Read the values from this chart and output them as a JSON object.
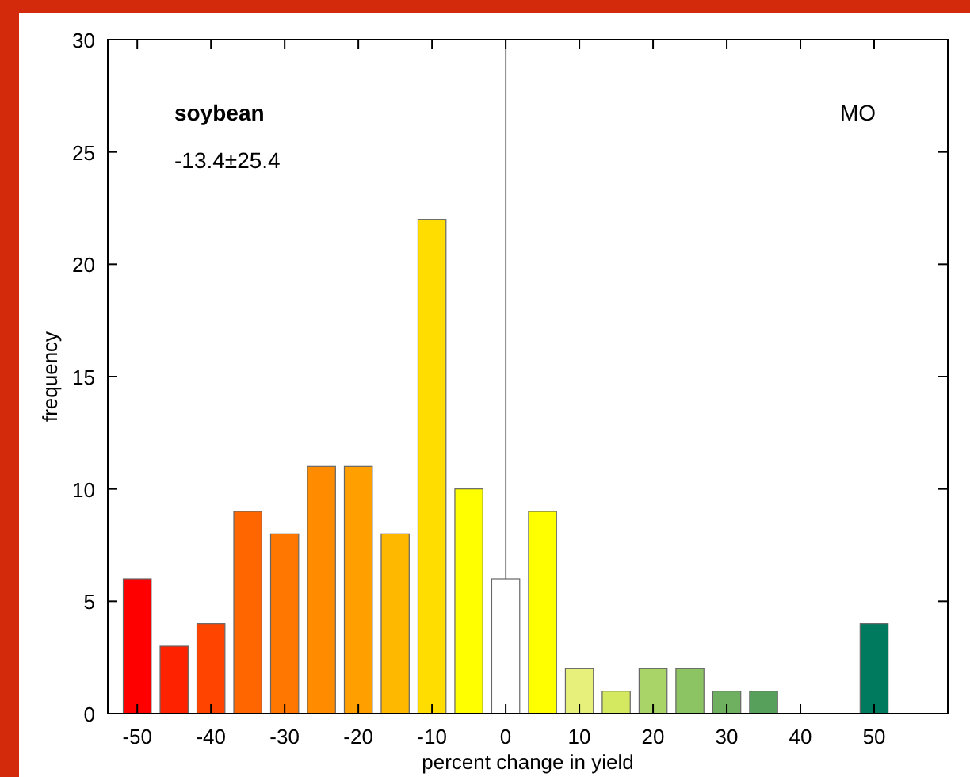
{
  "chart_data": {
    "type": "bar",
    "xlabel": "percent change in yield",
    "ylabel": "frequency",
    "x": [
      -50,
      -45,
      -40,
      -35,
      -30,
      -25,
      -20,
      -15,
      -10,
      -5,
      0,
      5,
      10,
      15,
      20,
      25,
      30,
      35,
      40,
      45,
      50
    ],
    "values": [
      6,
      3,
      4,
      9,
      8,
      11,
      11,
      8,
      22,
      10,
      6,
      9,
      2,
      1,
      2,
      2,
      1,
      1,
      0,
      0,
      4
    ],
    "colors": [
      "#ff0000",
      "#ff2200",
      "#ff4400",
      "#ff6600",
      "#ff7700",
      "#ff8c00",
      "#ffa000",
      "#ffb800",
      "#ffdd00",
      "#ffff00",
      "#ffffff",
      "#ffff00",
      "#e6f07a",
      "#d4e860",
      "#a8d468",
      "#8cc464",
      "#6fb060",
      "#56a05c",
      "#3f9058",
      "#2f8460",
      "#007a5e"
    ],
    "xlim": [
      -54,
      60
    ],
    "ylim": [
      0,
      30
    ],
    "xticks": [
      -50,
      -40,
      -30,
      -20,
      -10,
      0,
      10,
      20,
      30,
      40,
      50
    ],
    "yticks": [
      0,
      5,
      10,
      15,
      20,
      25,
      30
    ],
    "ref_lines": [
      {
        "axis": "x",
        "value": 0,
        "color": "#888888"
      }
    ],
    "annotations": [
      "soybean",
      "-13.4±25.4",
      "MO"
    ]
  }
}
